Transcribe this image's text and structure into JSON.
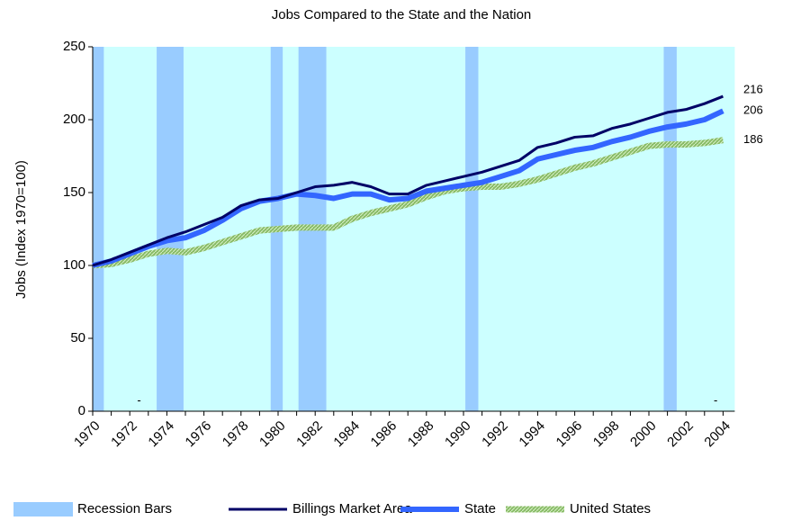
{
  "chart_data": {
    "type": "line",
    "title": "Jobs Compared to the State and the Nation",
    "y_label": "Jobs (Index 1970=100)",
    "x": [
      1970,
      1971,
      1972,
      1973,
      1974,
      1975,
      1976,
      1977,
      1978,
      1979,
      1980,
      1981,
      1982,
      1983,
      1984,
      1985,
      1986,
      1987,
      1988,
      1989,
      1990,
      1991,
      1992,
      1993,
      1994,
      1995,
      1996,
      1997,
      1998,
      1999,
      2000,
      2001,
      2002,
      2003,
      2004
    ],
    "xlim": [
      1970,
      2005
    ],
    "xticks": [
      1970,
      1972,
      1974,
      1976,
      1978,
      1980,
      1982,
      1984,
      1986,
      1988,
      1990,
      1992,
      1994,
      1996,
      1998,
      2000,
      2002,
      2004
    ],
    "x_minor_ticks": [
      1971,
      1973,
      1975,
      1977,
      1979,
      1981,
      1983,
      1985,
      1987,
      1989,
      1991,
      1993,
      1995,
      1997,
      1999,
      2001,
      2003
    ],
    "ylim": [
      0,
      250
    ],
    "yticks": [
      0,
      50,
      100,
      150,
      200,
      250
    ],
    "background": "#ccffff",
    "recession_bars": {
      "name": "Recession Bars",
      "color": "#99ccff",
      "ranges": [
        [
          1970,
          1970.6
        ],
        [
          1973.45,
          1974.9
        ],
        [
          1979.6,
          1980.25
        ],
        [
          1981.1,
          1982.6
        ],
        [
          1990.1,
          1990.8
        ],
        [
          2000.8,
          2001.5
        ]
      ]
    },
    "series": [
      {
        "name": "Billings Market Area",
        "color": "#000066",
        "width": 3,
        "values": [
          100,
          104,
          109,
          114,
          119,
          123,
          128,
          133,
          141,
          145,
          146,
          150,
          154,
          155,
          157,
          154,
          149,
          149,
          155,
          158,
          161,
          164,
          168,
          172,
          181,
          184,
          188,
          189,
          194,
          197,
          201,
          205,
          207,
          211,
          216
        ]
      },
      {
        "name": "State",
        "color": "#3366ff",
        "width": 6,
        "values": [
          100,
          103,
          108,
          113,
          117,
          119,
          124,
          131,
          139,
          144,
          146,
          149,
          148,
          146,
          149,
          149,
          145,
          146,
          151,
          153,
          155,
          157,
          161,
          165,
          173,
          176,
          179,
          181,
          185,
          188,
          192,
          195,
          197,
          200,
          206
        ]
      },
      {
        "name": "United States",
        "color": "#88bb66",
        "width": 7,
        "pattern": true,
        "values": [
          100,
          101,
          104,
          108,
          110,
          109,
          112,
          116,
          120,
          124,
          125,
          126,
          126,
          126,
          132,
          136,
          139,
          142,
          147,
          151,
          153,
          154,
          154,
          156,
          159,
          163,
          167,
          170,
          174,
          178,
          182,
          183,
          183,
          184,
          186
        ]
      }
    ],
    "annotations": [
      {
        "text": "-",
        "x": 1972.5,
        "y": 7
      },
      {
        "text": "-",
        "x": 2003.6,
        "y": 7
      }
    ]
  }
}
